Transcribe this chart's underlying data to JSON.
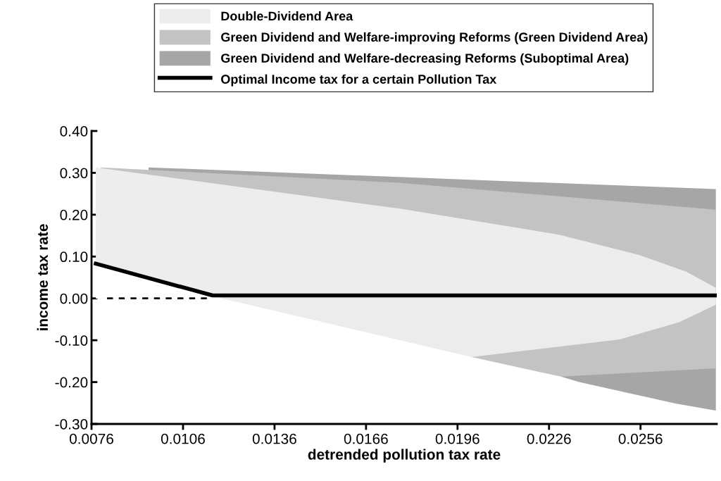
{
  "chart_data": {
    "type": "area",
    "xlabel": "detrended pollution tax rate",
    "ylabel": "income tax rate",
    "xlim": [
      0.0076,
      0.0281
    ],
    "xticks": [
      0.0076,
      0.0106,
      0.0136,
      0.0166,
      0.0196,
      0.0226,
      0.0256
    ],
    "ylim": [
      -0.3,
      0.4
    ],
    "yticks": [
      {
        "value": -0.3,
        "label": "-0.30"
      },
      {
        "value": -0.2,
        "label": "-0.20"
      },
      {
        "value": -0.1,
        "label": "-0.10"
      },
      {
        "value": 0,
        "label": "0.00"
      },
      {
        "value": 0.1,
        "label": "0.10"
      },
      {
        "value": 0.2,
        "label": "0.20"
      },
      {
        "value": 0.3,
        "label": "0.30"
      },
      {
        "value": 0.4,
        "label": "0.40"
      }
    ],
    "grid": false,
    "legend": "top",
    "series": [
      {
        "name": "Green Dividend and Welfare-decreasing Reforms (Suboptimal Area)",
        "color": "#a6a6a6",
        "x": [
          0.00947,
          0.02807
        ],
        "values": [
          0.313,
          0.261
        ]
      },
      {
        "color": "#a6a6a6",
        "x": [
          0.02299,
          0.02359,
          0.02675,
          0.02807
        ],
        "values": [
          -0.187,
          -0.2,
          -0.251,
          -0.268
        ]
      },
      {
        "name": "Green Dividend and Welfare-improving Reforms (Green Dividend Area)",
        "color": "#c3c3c3",
        "x": [
          0.0079,
          0.01775,
          0.02807
        ],
        "values": [
          0.313,
          0.276,
          0.212
        ]
      },
      {
        "color": "#c3c3c3",
        "x": [
          0.02006,
          0.02299,
          0.02807
        ],
        "values": [
          -0.14,
          -0.187,
          -0.167
        ]
      },
      {
        "name": "Double-Dividend Area",
        "color": "#ededed",
        "x": [
          0.00774,
          0.01775,
          0.02295,
          0.02555,
          0.0271,
          0.02807
        ],
        "values": [
          0.313,
          0.214,
          0.152,
          0.104,
          0.064,
          0.025
        ]
      },
      {
        "color": "#ececec",
        "x": [
          0.01187,
          0.02006,
          0.02491,
          0.02687,
          0.02807
        ],
        "values": [
          0,
          -0.14,
          -0.098,
          -0.057,
          -0.015
        ]
      },
      {
        "color": "#ffffff",
        "x": [
          0.00774,
          0.01157,
          0.01187
        ],
        "values": [
          0.083,
          0.007,
          0
        ]
      },
      {
        "type": "line",
        "color": "#000000",
        "line_style": "dashed",
        "x": [
          0.00811,
          0.01157
        ],
        "values": [
          0,
          0
        ]
      },
      {
        "name": "Optimal Income tax for a certain Pollution Tax",
        "type": "line",
        "color": "#000000",
        "line_style": "solid",
        "x": [
          0.00774,
          0.01157,
          0.02807
        ],
        "values": [
          0.083,
          0.007,
          0.007
        ]
      }
    ]
  }
}
